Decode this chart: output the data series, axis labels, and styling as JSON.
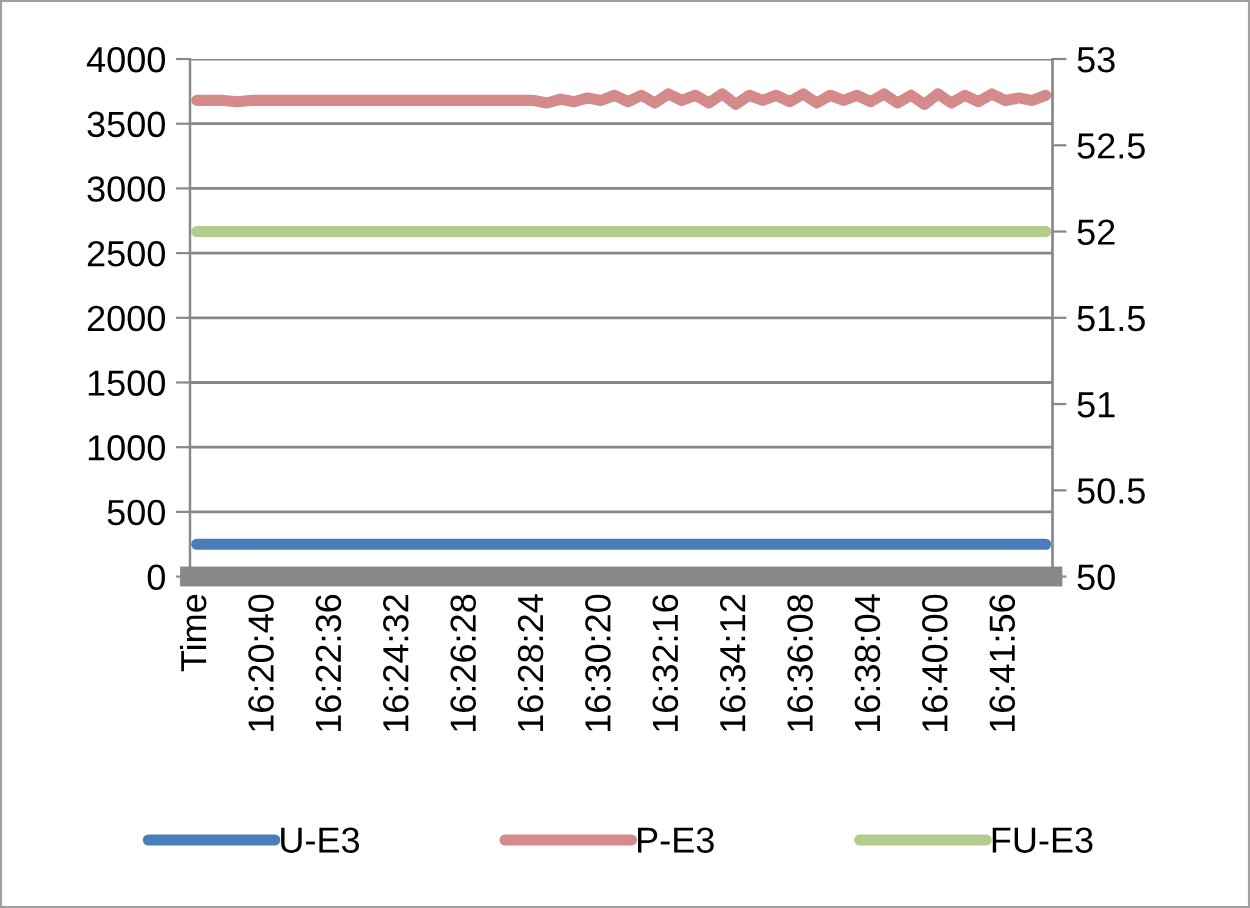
{
  "chart_data": {
    "type": "line",
    "categories": [
      "Time",
      null,
      null,
      null,
      null,
      "16:20:40",
      null,
      null,
      null,
      null,
      "16:22:36",
      null,
      null,
      null,
      null,
      "16:24:32",
      null,
      null,
      null,
      null,
      "16:26:28",
      null,
      null,
      null,
      null,
      "16:28:24",
      null,
      null,
      null,
      null,
      "16:30:20",
      null,
      null,
      null,
      null,
      "16:32:16",
      null,
      null,
      null,
      null,
      "16:34:12",
      null,
      null,
      null,
      null,
      "16:36:08",
      null,
      null,
      null,
      null,
      "16:38:04",
      null,
      null,
      null,
      null,
      "16:40:00",
      null,
      null,
      null,
      null,
      "16:41:56",
      null,
      null,
      null
    ],
    "series": [
      {
        "name": "U-E3",
        "color": "#4a7ebb",
        "values": [
          250,
          250,
          250,
          250,
          250,
          250,
          250,
          250,
          250,
          250,
          250,
          250,
          250,
          250,
          250,
          250,
          250,
          250,
          250,
          250,
          250,
          250,
          250,
          250,
          250,
          250,
          250,
          250,
          250,
          250,
          250,
          250,
          250,
          250,
          250,
          250,
          250,
          250,
          250,
          250,
          250,
          250,
          250,
          250,
          250,
          250,
          250,
          250,
          250,
          250,
          250,
          250,
          250,
          250,
          250,
          250,
          250,
          250,
          250,
          250,
          250,
          250,
          250,
          250
        ]
      },
      {
        "name": "P-E3",
        "color": "#d48a8a",
        "values": [
          3680,
          3680,
          3680,
          3670,
          3680,
          3680,
          3680,
          3680,
          3680,
          3680,
          3680,
          3680,
          3680,
          3680,
          3680,
          3680,
          3680,
          3680,
          3680,
          3680,
          3680,
          3680,
          3680,
          3680,
          3680,
          3680,
          3660,
          3690,
          3670,
          3700,
          3680,
          3720,
          3670,
          3720,
          3660,
          3730,
          3680,
          3720,
          3660,
          3730,
          3650,
          3720,
          3680,
          3720,
          3670,
          3730,
          3660,
          3720,
          3680,
          3720,
          3670,
          3730,
          3660,
          3720,
          3650,
          3730,
          3660,
          3720,
          3670,
          3730,
          3680,
          3700,
          3680,
          3720
        ]
      },
      {
        "name": "FU-E3",
        "color": "#b3cc8e",
        "axis": "y2",
        "values": [
          52,
          52,
          52,
          52,
          52,
          52,
          52,
          52,
          52,
          52,
          52,
          52,
          52,
          52,
          52,
          52,
          52,
          52,
          52,
          52,
          52,
          52,
          52,
          52,
          52,
          52,
          52,
          52,
          52,
          52,
          52,
          52,
          52,
          52,
          52,
          52,
          52,
          52,
          52,
          52,
          52,
          52,
          52,
          52,
          52,
          52,
          52,
          52,
          52,
          52,
          52,
          52,
          52,
          52,
          52,
          52,
          52,
          52,
          52,
          52,
          52,
          52,
          52,
          52
        ]
      }
    ],
    "ylim": [
      0,
      4000
    ],
    "yticks": [
      0,
      500,
      1000,
      1500,
      2000,
      2500,
      3000,
      3500,
      4000
    ],
    "y2lim": [
      50,
      53
    ],
    "y2ticks": [
      50,
      50.5,
      51,
      51.5,
      52,
      52.5,
      53
    ],
    "grid": "y",
    "legend": "bottom",
    "marker": "none",
    "line_style": "solid"
  }
}
